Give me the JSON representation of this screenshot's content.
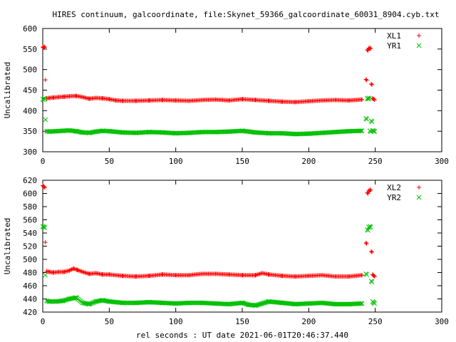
{
  "figure": {
    "title": "HIRES continuum, galcoordinate, file:Skynet_59366_galcoordinate_60031_8904.cyb.txt",
    "xlabel": "rel seconds : UT date 2021-06-01T20:46:37.440"
  },
  "colors": {
    "red": "#ff0000",
    "green": "#00c000",
    "axis": "#000000"
  },
  "chart_data": [
    {
      "type": "scatter",
      "title": "HIRES continuum, galcoordinate, file:Skynet_59366_galcoordinate_60031_8904.cyb.txt",
      "xlabel": "",
      "ylabel": "Uncalibrated",
      "xlim": [
        0,
        300
      ],
      "ylim": [
        300,
        600
      ],
      "xticks": [
        0,
        50,
        100,
        150,
        200,
        250,
        300
      ],
      "yticks": [
        300,
        350,
        400,
        450,
        500,
        550,
        600
      ],
      "grid": false,
      "legend": "top-right",
      "series": [
        {
          "name": "XL1",
          "marker": "plus",
          "color": "#ff0000",
          "x": [
            0,
            1,
            2,
            3,
            5,
            8,
            12,
            16,
            20,
            25,
            30,
            35,
            40,
            45,
            50,
            55,
            60,
            70,
            80,
            90,
            100,
            110,
            120,
            130,
            140,
            150,
            160,
            170,
            180,
            190,
            200,
            210,
            220,
            230,
            240,
            243,
            244,
            245,
            246,
            247,
            248,
            249
          ],
          "y": [
            555,
            556,
            475,
            430,
            431,
            432,
            433,
            434,
            435,
            436,
            433,
            429,
            431,
            430,
            428,
            425,
            424,
            424,
            425,
            426,
            425,
            424,
            426,
            427,
            425,
            428,
            426,
            424,
            422,
            421,
            423,
            425,
            426,
            425,
            427,
            476,
            548,
            552,
            553,
            465,
            430,
            428
          ]
        },
        {
          "name": "YR1",
          "marker": "cross",
          "color": "#00c000",
          "x": [
            0,
            1,
            2,
            3,
            5,
            10,
            15,
            20,
            25,
            30,
            35,
            40,
            45,
            50,
            60,
            70,
            80,
            90,
            100,
            110,
            120,
            130,
            140,
            150,
            160,
            170,
            180,
            190,
            200,
            210,
            220,
            230,
            240,
            243,
            244,
            245,
            246,
            247,
            248,
            249
          ],
          "y": [
            428,
            430,
            378,
            350,
            349,
            350,
            351,
            352,
            350,
            347,
            346,
            349,
            351,
            350,
            347,
            346,
            348,
            347,
            345,
            346,
            348,
            348,
            349,
            351,
            347,
            345,
            345,
            343,
            344,
            346,
            348,
            350,
            351,
            381,
            430,
            431,
            351,
            375,
            352,
            351
          ]
        }
      ]
    },
    {
      "type": "scatter",
      "title": "",
      "xlabel": "rel seconds : UT date 2021-06-01T20:46:37.440",
      "ylabel": "Uncalibrated",
      "xlim": [
        0,
        300
      ],
      "ylim": [
        420,
        620
      ],
      "xticks": [
        0,
        50,
        100,
        150,
        200,
        250,
        300
      ],
      "yticks": [
        420,
        440,
        460,
        480,
        500,
        520,
        540,
        560,
        580,
        600,
        620
      ],
      "grid": false,
      "legend": "top-right",
      "series": [
        {
          "name": "XL2",
          "marker": "plus",
          "color": "#ff0000",
          "x": [
            0,
            1,
            2,
            3,
            5,
            8,
            12,
            16,
            20,
            23,
            26,
            30,
            35,
            40,
            45,
            50,
            60,
            70,
            80,
            90,
            100,
            110,
            120,
            130,
            140,
            150,
            160,
            165,
            170,
            180,
            190,
            200,
            210,
            220,
            230,
            240,
            243,
            244,
            245,
            246,
            247,
            248,
            249
          ],
          "y": [
            612,
            610,
            526,
            482,
            481,
            480,
            481,
            481,
            483,
            486,
            484,
            481,
            478,
            479,
            477,
            477,
            475,
            474,
            475,
            477,
            476,
            476,
            478,
            478,
            477,
            476,
            476,
            479,
            477,
            475,
            474,
            475,
            476,
            474,
            474,
            476,
            525,
            601,
            604,
            606,
            512,
            477,
            475
          ]
        },
        {
          "name": "YR2",
          "marker": "cross",
          "color": "#00c000",
          "x": [
            0,
            1,
            2,
            3,
            5,
            10,
            15,
            20,
            25,
            30,
            35,
            40,
            45,
            50,
            60,
            70,
            80,
            90,
            100,
            110,
            120,
            130,
            140,
            150,
            155,
            160,
            170,
            180,
            190,
            200,
            210,
            220,
            230,
            240,
            243,
            244,
            245,
            246,
            247,
            248,
            249
          ],
          "y": [
            550,
            549,
            476,
            437,
            436,
            436,
            437,
            440,
            442,
            434,
            432,
            436,
            438,
            436,
            434,
            434,
            435,
            434,
            433,
            434,
            434,
            433,
            432,
            434,
            431,
            430,
            436,
            434,
            432,
            433,
            434,
            432,
            432,
            433,
            478,
            545,
            549,
            550,
            467,
            436,
            434
          ]
        }
      ]
    }
  ]
}
